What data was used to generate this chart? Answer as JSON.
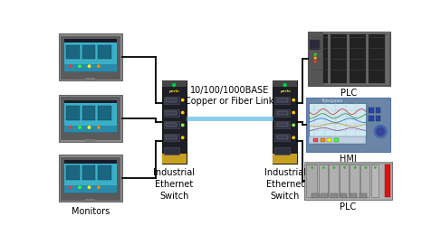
{
  "bg_color": "#ffffff",
  "link_label_line1": "10/100/1000BASE",
  "link_label_line2": "Copper or Fiber Link",
  "left_switch_label": "Industrial\nEthernet\nSwitch",
  "right_switch_label": "Industrial\nEthernet\nSwitch",
  "monitors_label": "Monitors",
  "plc_top_label": "PLC",
  "hmi_label": "HMI",
  "plc_bot_label": "PLC",
  "link_color": "#87CEEB",
  "line_color": "#000000",
  "label_fontsize": 7.0,
  "link_fontsize": 7.0,
  "fig_width": 4.87,
  "fig_height": 2.6,
  "dpi": 100
}
